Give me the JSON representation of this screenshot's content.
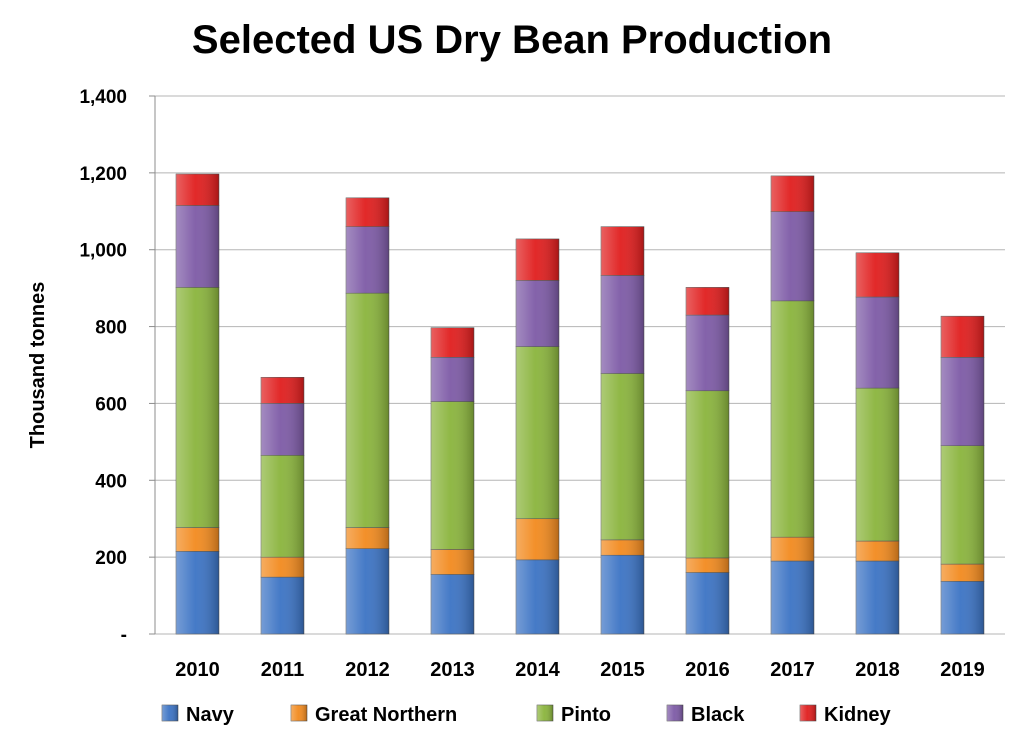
{
  "chart_data": {
    "type": "bar",
    "stacked": true,
    "title": "Selected US Dry Bean Production",
    "ylabel": "Thousand tonnes",
    "xlabel": "",
    "ylim": [
      0,
      1400
    ],
    "yticks": [
      0,
      200,
      400,
      600,
      800,
      1000,
      1200,
      1400
    ],
    "ytick_labels": [
      "-",
      "200",
      "400",
      "600",
      "800",
      "1,000",
      "1,200",
      "1,400"
    ],
    "grid": true,
    "legend_position": "bottom",
    "categories": [
      "2010",
      "2011",
      "2012",
      "2013",
      "2014",
      "2015",
      "2016",
      "2017",
      "2018",
      "2019"
    ],
    "series": [
      {
        "name": "Navy",
        "color": "#3b73c4",
        "values": [
          215,
          148,
          222,
          155,
          193,
          205,
          160,
          190,
          190,
          137
        ]
      },
      {
        "name": "Great Northern",
        "color": "#f28a1e",
        "values": [
          62,
          52,
          55,
          65,
          107,
          40,
          38,
          62,
          52,
          45
        ]
      },
      {
        "name": "Pinto",
        "color": "#8ab43c",
        "values": [
          625,
          265,
          610,
          385,
          448,
          433,
          435,
          615,
          398,
          308
        ]
      },
      {
        "name": "Black",
        "color": "#7d5aa6",
        "values": [
          213,
          135,
          173,
          115,
          172,
          255,
          197,
          232,
          237,
          230
        ]
      },
      {
        "name": "Kidney",
        "color": "#e01d1d",
        "values": [
          82,
          68,
          75,
          77,
          108,
          127,
          72,
          93,
          115,
          107
        ]
      }
    ]
  }
}
